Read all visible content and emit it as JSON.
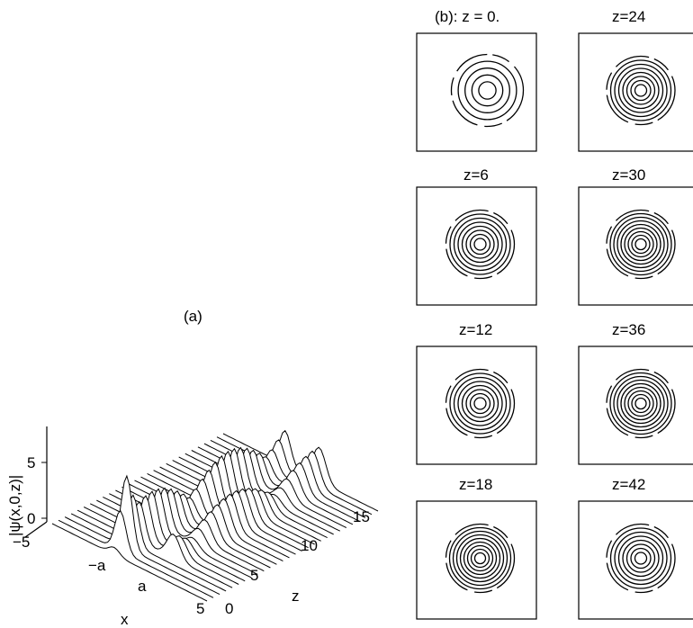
{
  "panel_a": {
    "label": "(a)",
    "z_axis_label": "|ψ(x,0,z)|",
    "x_axis_label": "x",
    "z_ticks": [
      "0",
      "5"
    ],
    "x_ticks": [
      "−5",
      "−a",
      "a",
      "5"
    ],
    "depth_axis_label": "z",
    "depth_ticks": [
      "0",
      "5",
      "10",
      "15"
    ]
  },
  "panel_b": {
    "titles": [
      "(b): z = 0.",
      "z=24",
      "z=6",
      "z=30",
      "z=12",
      "z=36",
      "z=18",
      "z=42"
    ]
  }
}
